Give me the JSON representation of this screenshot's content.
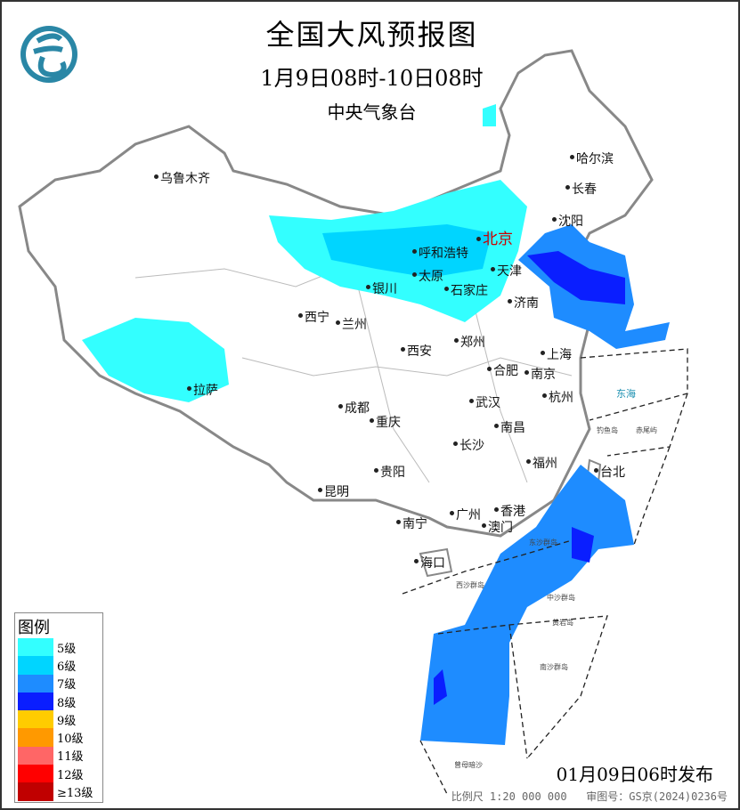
{
  "title": "全国大风预报图",
  "period": "1月9日08时-10日08时",
  "issuer": "中央气象台",
  "logo_icon": "cma-logo",
  "legend": {
    "title": "图例",
    "items": [
      {
        "label": "5级",
        "color": "#33ffff"
      },
      {
        "label": "6级",
        "color": "#00d5ff"
      },
      {
        "label": "7级",
        "color": "#1e8cff"
      },
      {
        "label": "8级",
        "color": "#0a1eff"
      },
      {
        "label": "9级",
        "color": "#ffcc00"
      },
      {
        "label": "10级",
        "color": "#ff9900"
      },
      {
        "label": "11级",
        "color": "#ff6666"
      },
      {
        "label": "12级",
        "color": "#ff0000"
      },
      {
        "label": "≥13级",
        "color": "#c00000"
      }
    ]
  },
  "cities": [
    "乌鲁木齐",
    "哈尔滨",
    "长春",
    "沈阳",
    "北京",
    "呼和浩特",
    "天津",
    "银川",
    "太原",
    "石家庄",
    "济南",
    "西宁",
    "兰州",
    "西安",
    "郑州",
    "合肥",
    "南京",
    "上海",
    "杭州",
    "拉萨",
    "成都",
    "武汉",
    "重庆",
    "南昌",
    "长沙",
    "福州",
    "台北",
    "贵阳",
    "昆明",
    "南宁",
    "广州",
    "香港",
    "澳门",
    "海口"
  ],
  "seas": [
    "东海",
    "钓鱼岛",
    "赤尾屿",
    "东沙群岛",
    "西沙群岛",
    "中沙群岛",
    "黄岩岛",
    "南沙群岛",
    "曾母暗沙"
  ],
  "issued": "01月09日06时发布",
  "scale": "比例尺 1:20 000 000",
  "review_no": "审图号：GS京(2024)0236号"
}
